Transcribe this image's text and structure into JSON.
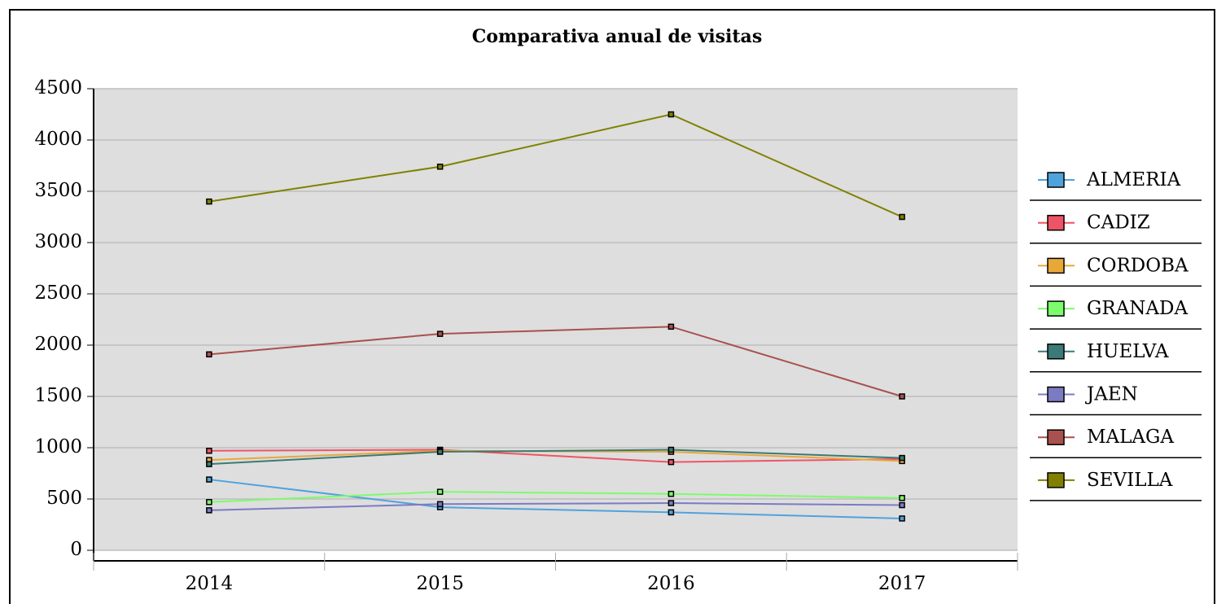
{
  "chart_data": {
    "type": "line",
    "title": "Comparativa anual de visitas",
    "categories": [
      "2014",
      "2015",
      "2016",
      "2017"
    ],
    "series": [
      {
        "name": "ALMERIA",
        "color": "#4fa3dc",
        "values": [
          690,
          420,
          370,
          310
        ]
      },
      {
        "name": "CADIZ",
        "color": "#ef5466",
        "values": [
          970,
          980,
          860,
          890
        ]
      },
      {
        "name": "CORDOBA",
        "color": "#e8a838",
        "values": [
          880,
          970,
          960,
          870
        ]
      },
      {
        "name": "GRANADA",
        "color": "#7cfc6c",
        "values": [
          470,
          570,
          550,
          510
        ]
      },
      {
        "name": "HUELVA",
        "color": "#3b7a76",
        "values": [
          840,
          960,
          980,
          900
        ]
      },
      {
        "name": "JAEN",
        "color": "#7b7bc4",
        "values": [
          390,
          450,
          460,
          440
        ]
      },
      {
        "name": "MALAGA",
        "color": "#a8514e",
        "values": [
          1910,
          2110,
          2180,
          1500
        ]
      },
      {
        "name": "SEVILLA",
        "color": "#808000",
        "values": [
          3400,
          3740,
          4250,
          3250
        ]
      }
    ],
    "ylim": [
      0,
      4500
    ],
    "yticks": [
      0,
      500,
      1000,
      1500,
      2000,
      2500,
      3000,
      3500,
      4000,
      4500
    ],
    "grid": true,
    "legend": "right"
  }
}
